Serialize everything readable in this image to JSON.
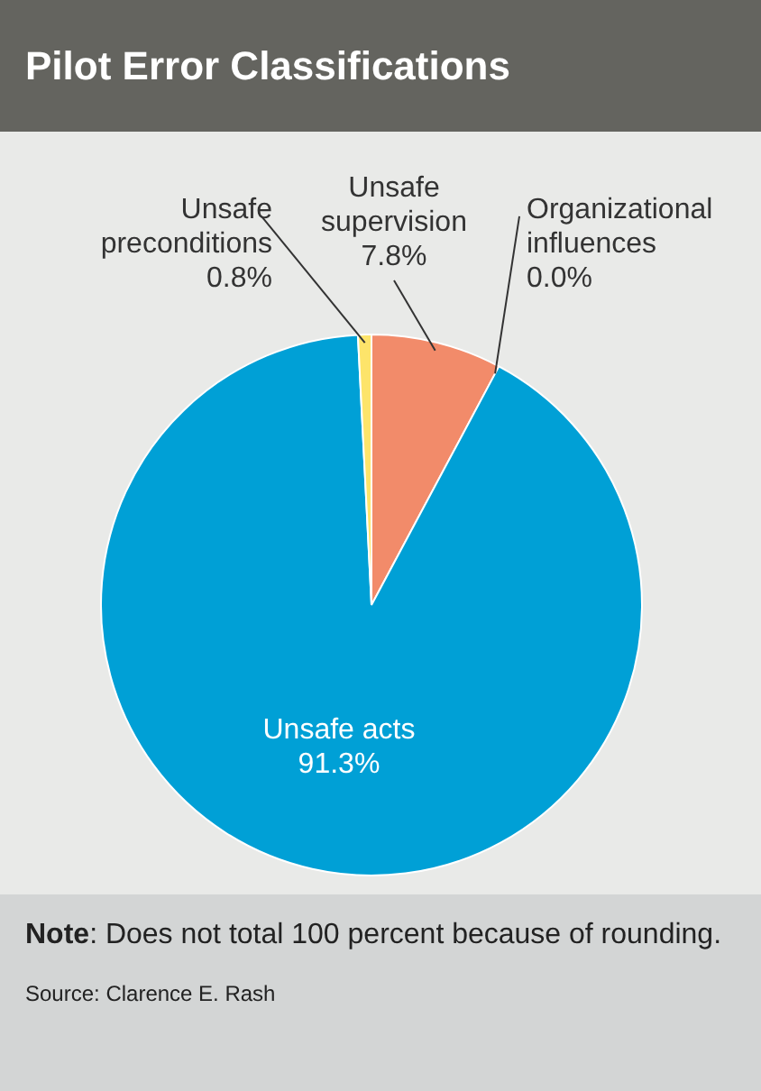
{
  "chart_data": {
    "type": "pie",
    "title": "Pilot Error Classifications",
    "categories": [
      "Unsafe supervision",
      "Organizational influences",
      "Unsafe acts",
      "Unsafe preconditions"
    ],
    "values": [
      7.8,
      0.0,
      91.3,
      0.8
    ],
    "value_labels": [
      "7.8%",
      "0.0%",
      "91.3%",
      "0.8%"
    ],
    "colors": [
      "#f28b6a",
      "#f28b6a",
      "#00a0d6",
      "#fde46a"
    ],
    "legend": false,
    "annotations": [
      "Note: Does not total 100 percent because of rounding.",
      "Source: Clarence E. Rash"
    ]
  }
}
